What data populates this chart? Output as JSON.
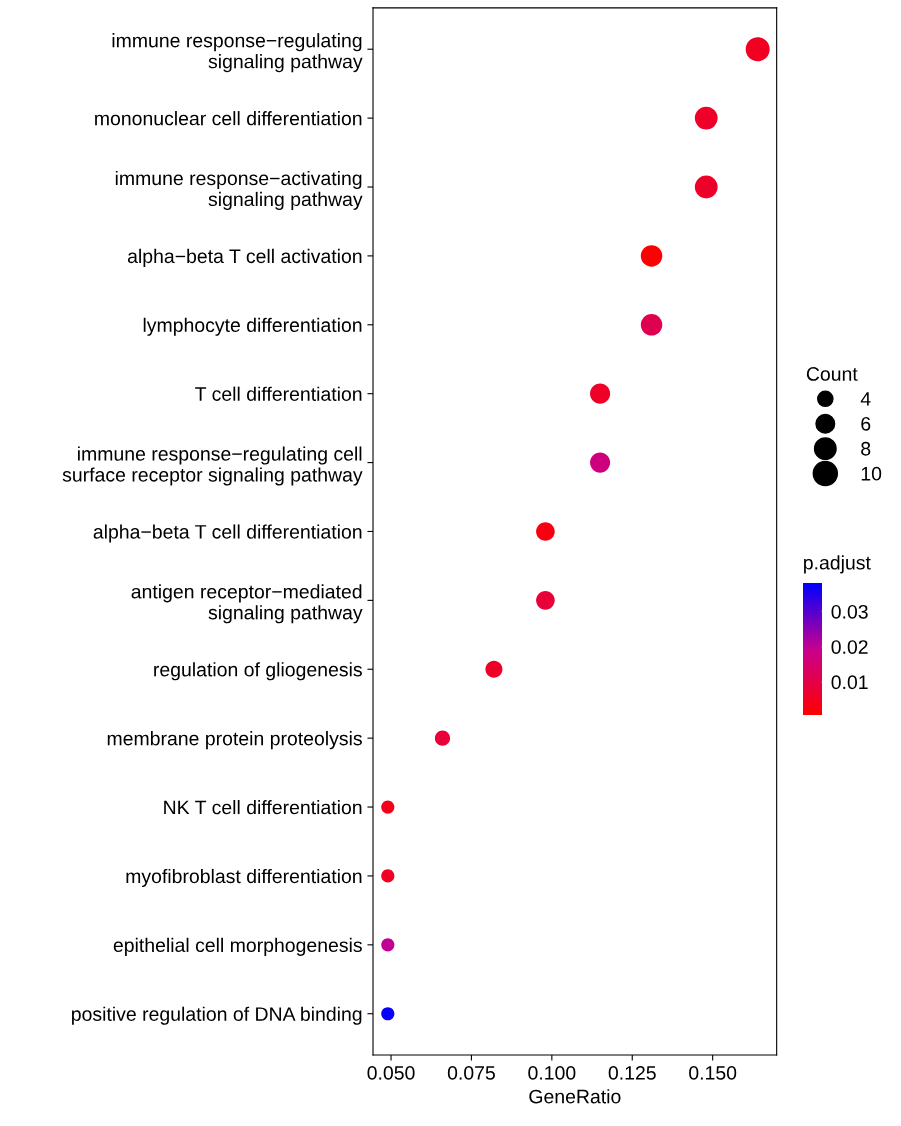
{
  "chart_data": {
    "type": "bubble",
    "orientation": "horizontal",
    "xlabel": "GeneRatio",
    "legend_title": "Count",
    "clabel": "p.adjust",
    "categories": [
      "immune response−regulating\nsignaling pathway",
      "mononuclear cell differentiation",
      "immune response−activating\nsignaling pathway",
      "alpha−beta T cell activation",
      "lymphocyte differentiation",
      "T cell differentiation",
      "immune response−regulating cell\nsurface receptor signaling pathway",
      "alpha−beta T cell differentiation",
      "antigen receptor−mediated\nsignaling pathway",
      "regulation of gliogenesis",
      "membrane protein proteolysis",
      "NK T cell differentiation",
      "myofibroblast differentiation",
      "epithelial cell morphogenesis",
      "positive regulation of DNA binding"
    ],
    "values": [
      0.164,
      0.148,
      0.148,
      0.131,
      0.131,
      0.115,
      0.115,
      0.098,
      0.098,
      0.082,
      0.066,
      0.049,
      0.049,
      0.049,
      0.049
    ],
    "sizes": [
      10,
      9,
      9,
      8,
      8,
      7,
      7,
      6,
      6,
      5,
      4,
      3,
      3,
      3,
      3
    ],
    "size_legend": [
      4,
      6,
      8,
      10
    ],
    "cvalues": [
      0.005,
      0.006,
      0.006,
      0.001,
      0.011,
      0.006,
      0.017,
      0.003,
      0.008,
      0.006,
      0.008,
      0.004,
      0.005,
      0.02,
      0.037
    ],
    "clim": [
      0.0006,
      0.038
    ],
    "cticks": [
      0.01,
      0.02,
      0.03
    ],
    "xlim": [
      0.0444,
      0.1699
    ],
    "xticks": [
      {
        "value": 0.05,
        "label": "0.050"
      },
      {
        "value": 0.075,
        "label": "0.075"
      },
      {
        "value": 0.1,
        "label": "0.100"
      },
      {
        "value": 0.125,
        "label": "0.125"
      },
      {
        "value": 0.15,
        "label": "0.150"
      }
    ],
    "grid": false
  }
}
